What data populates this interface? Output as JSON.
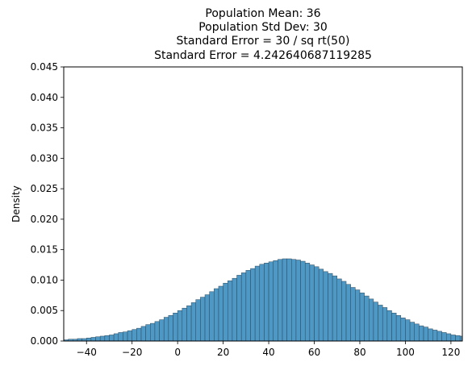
{
  "chart_data": {
    "type": "histogram",
    "title_lines": [
      "Population Mean: 36",
      "Population Std Dev: 30",
      "Standard Error = 30 / sq rt(50)",
      "Standard Error = 4.242640687119285"
    ],
    "xlabel": "",
    "ylabel": "Density",
    "xlim": [
      -50,
      125
    ],
    "ylim": [
      0,
      0.045
    ],
    "x_ticks": [
      -40,
      -20,
      0,
      20,
      40,
      60,
      80,
      100,
      120
    ],
    "y_ticks": [
      0.0,
      0.005,
      0.01,
      0.015,
      0.02,
      0.025,
      0.03,
      0.035,
      0.04,
      0.045
    ],
    "y_tick_labels": [
      "0.000",
      "0.005",
      "0.010",
      "0.015",
      "0.020",
      "0.025",
      "0.030",
      "0.035",
      "0.040",
      "0.045"
    ],
    "bin_width": 2,
    "bin_start": -50,
    "values": [
      0.0002,
      0.0003,
      0.0003,
      0.0004,
      0.0004,
      0.0005,
      0.0006,
      0.0007,
      0.0008,
      0.0009,
      0.001,
      0.0012,
      0.0014,
      0.0015,
      0.0017,
      0.0019,
      0.0021,
      0.0024,
      0.0027,
      0.0029,
      0.0032,
      0.0035,
      0.0039,
      0.0042,
      0.0046,
      0.005,
      0.0054,
      0.0058,
      0.0063,
      0.0068,
      0.0072,
      0.0076,
      0.0081,
      0.0086,
      0.009,
      0.0095,
      0.0099,
      0.0103,
      0.0108,
      0.0112,
      0.0116,
      0.0119,
      0.0123,
      0.0126,
      0.0128,
      0.013,
      0.0132,
      0.0134,
      0.0135,
      0.0135,
      0.0134,
      0.0133,
      0.0131,
      0.0128,
      0.0125,
      0.0122,
      0.0118,
      0.0114,
      0.0111,
      0.0107,
      0.0102,
      0.0098,
      0.0093,
      0.0088,
      0.0084,
      0.0079,
      0.0074,
      0.0069,
      0.0064,
      0.0059,
      0.0055,
      0.005,
      0.0046,
      0.0042,
      0.0038,
      0.0035,
      0.0031,
      0.0028,
      0.0025,
      0.0023,
      0.002,
      0.0018,
      0.0016,
      0.0014,
      0.0012,
      0.001,
      0.0009,
      0.0008,
      0.0006,
      0.0006,
      0.0005,
      0.0004,
      0.0003,
      0.0003,
      0.0002,
      0.0002,
      0.0002,
      0.0001
    ],
    "bar_color": "#3b8dc0",
    "bar_edge_color": "#2f4a5c",
    "grid": false,
    "legend": "none"
  }
}
